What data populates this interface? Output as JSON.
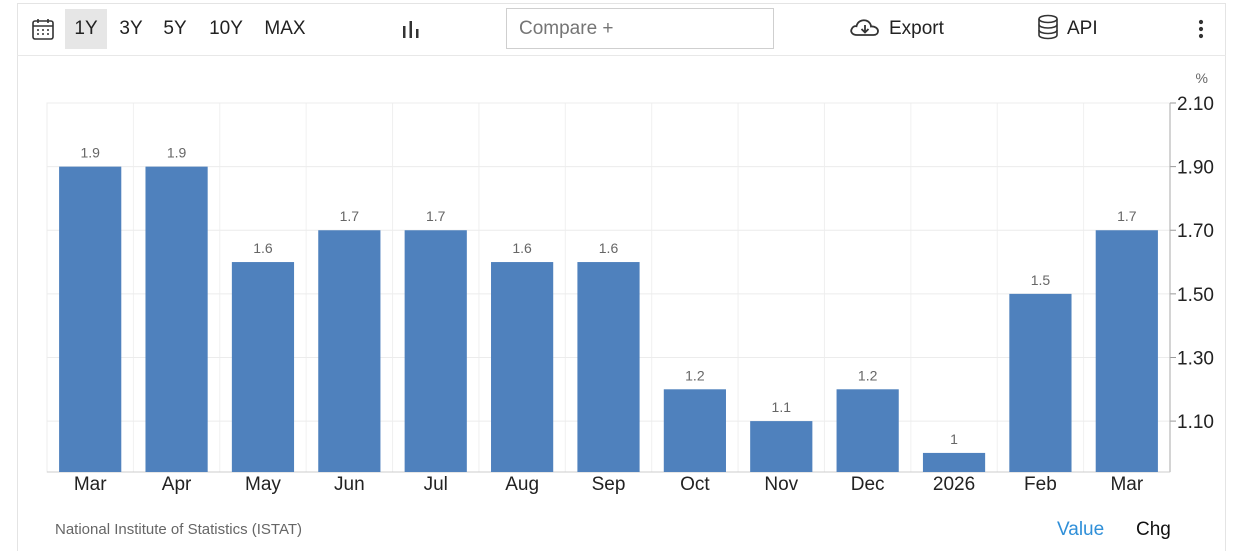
{
  "toolbar": {
    "ranges": [
      "1Y",
      "3Y",
      "5Y",
      "10Y",
      "MAX"
    ],
    "active_range": "1Y",
    "compare_placeholder": "Compare +",
    "export_label": "Export",
    "api_label": "API",
    "icons": {
      "calendar": "calendar-icon",
      "chart_type": "bar-chart-icon",
      "export": "cloud-download-icon",
      "api": "database-icon",
      "more": "more-vertical-icon"
    }
  },
  "chart_data": {
    "type": "bar",
    "categories": [
      "Mar",
      "Apr",
      "May",
      "Jun",
      "Jul",
      "Aug",
      "Sep",
      "Oct",
      "Nov",
      "Dec",
      "2026",
      "Feb",
      "Mar"
    ],
    "values": [
      1.9,
      1.9,
      1.6,
      1.7,
      1.7,
      1.6,
      1.6,
      1.2,
      1.1,
      1.2,
      1.0,
      1.5,
      1.7
    ],
    "data_labels": [
      "1.9",
      "1.9",
      "1.6",
      "1.7",
      "1.7",
      "1.6",
      "1.6",
      "1.2",
      "1.1",
      "1.2",
      "1",
      "1.5",
      "1.7"
    ],
    "unit": "%",
    "y_ticks": [
      "2.10",
      "1.90",
      "1.70",
      "1.50",
      "1.30",
      "1.10"
    ],
    "ylim": [
      0.94,
      2.1
    ],
    "y_axis_position": "right",
    "grid": true,
    "bar_color": "#4f81bd"
  },
  "footer": {
    "source": "National Institute of Statistics (ISTAT)",
    "value_label": "Value",
    "chg_label": "Chg",
    "value_color": "#2f8fd8"
  }
}
